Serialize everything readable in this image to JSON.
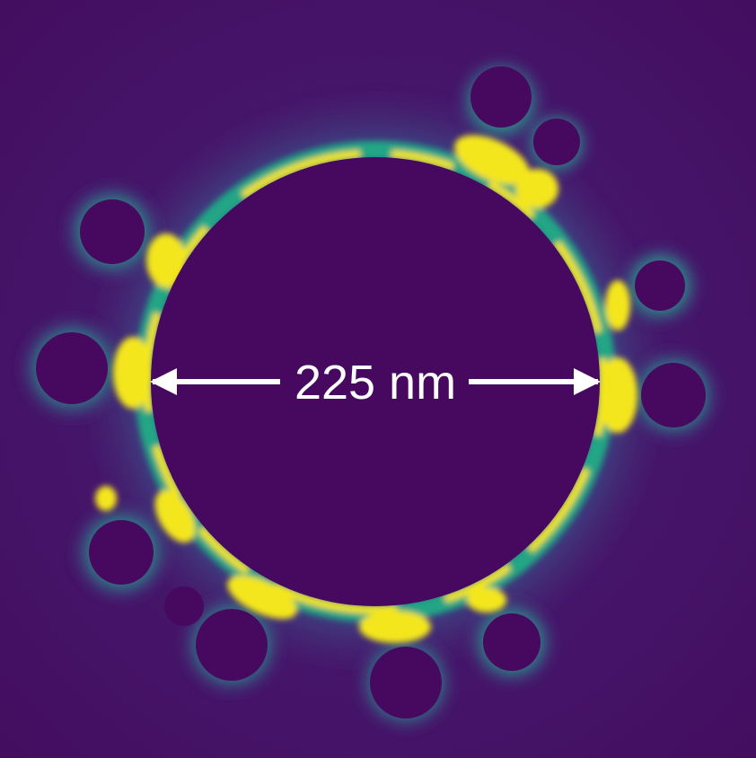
{
  "figure": {
    "scale_bar": {
      "label": "225 nm"
    },
    "colors": {
      "background": "#440c5e",
      "particle": "#46095f",
      "field_low": "#3b4f8a",
      "field_mid": "#21a685",
      "field_high": "#f4e61e",
      "annotation": "#ffffff"
    },
    "colormap": "viridis"
  }
}
